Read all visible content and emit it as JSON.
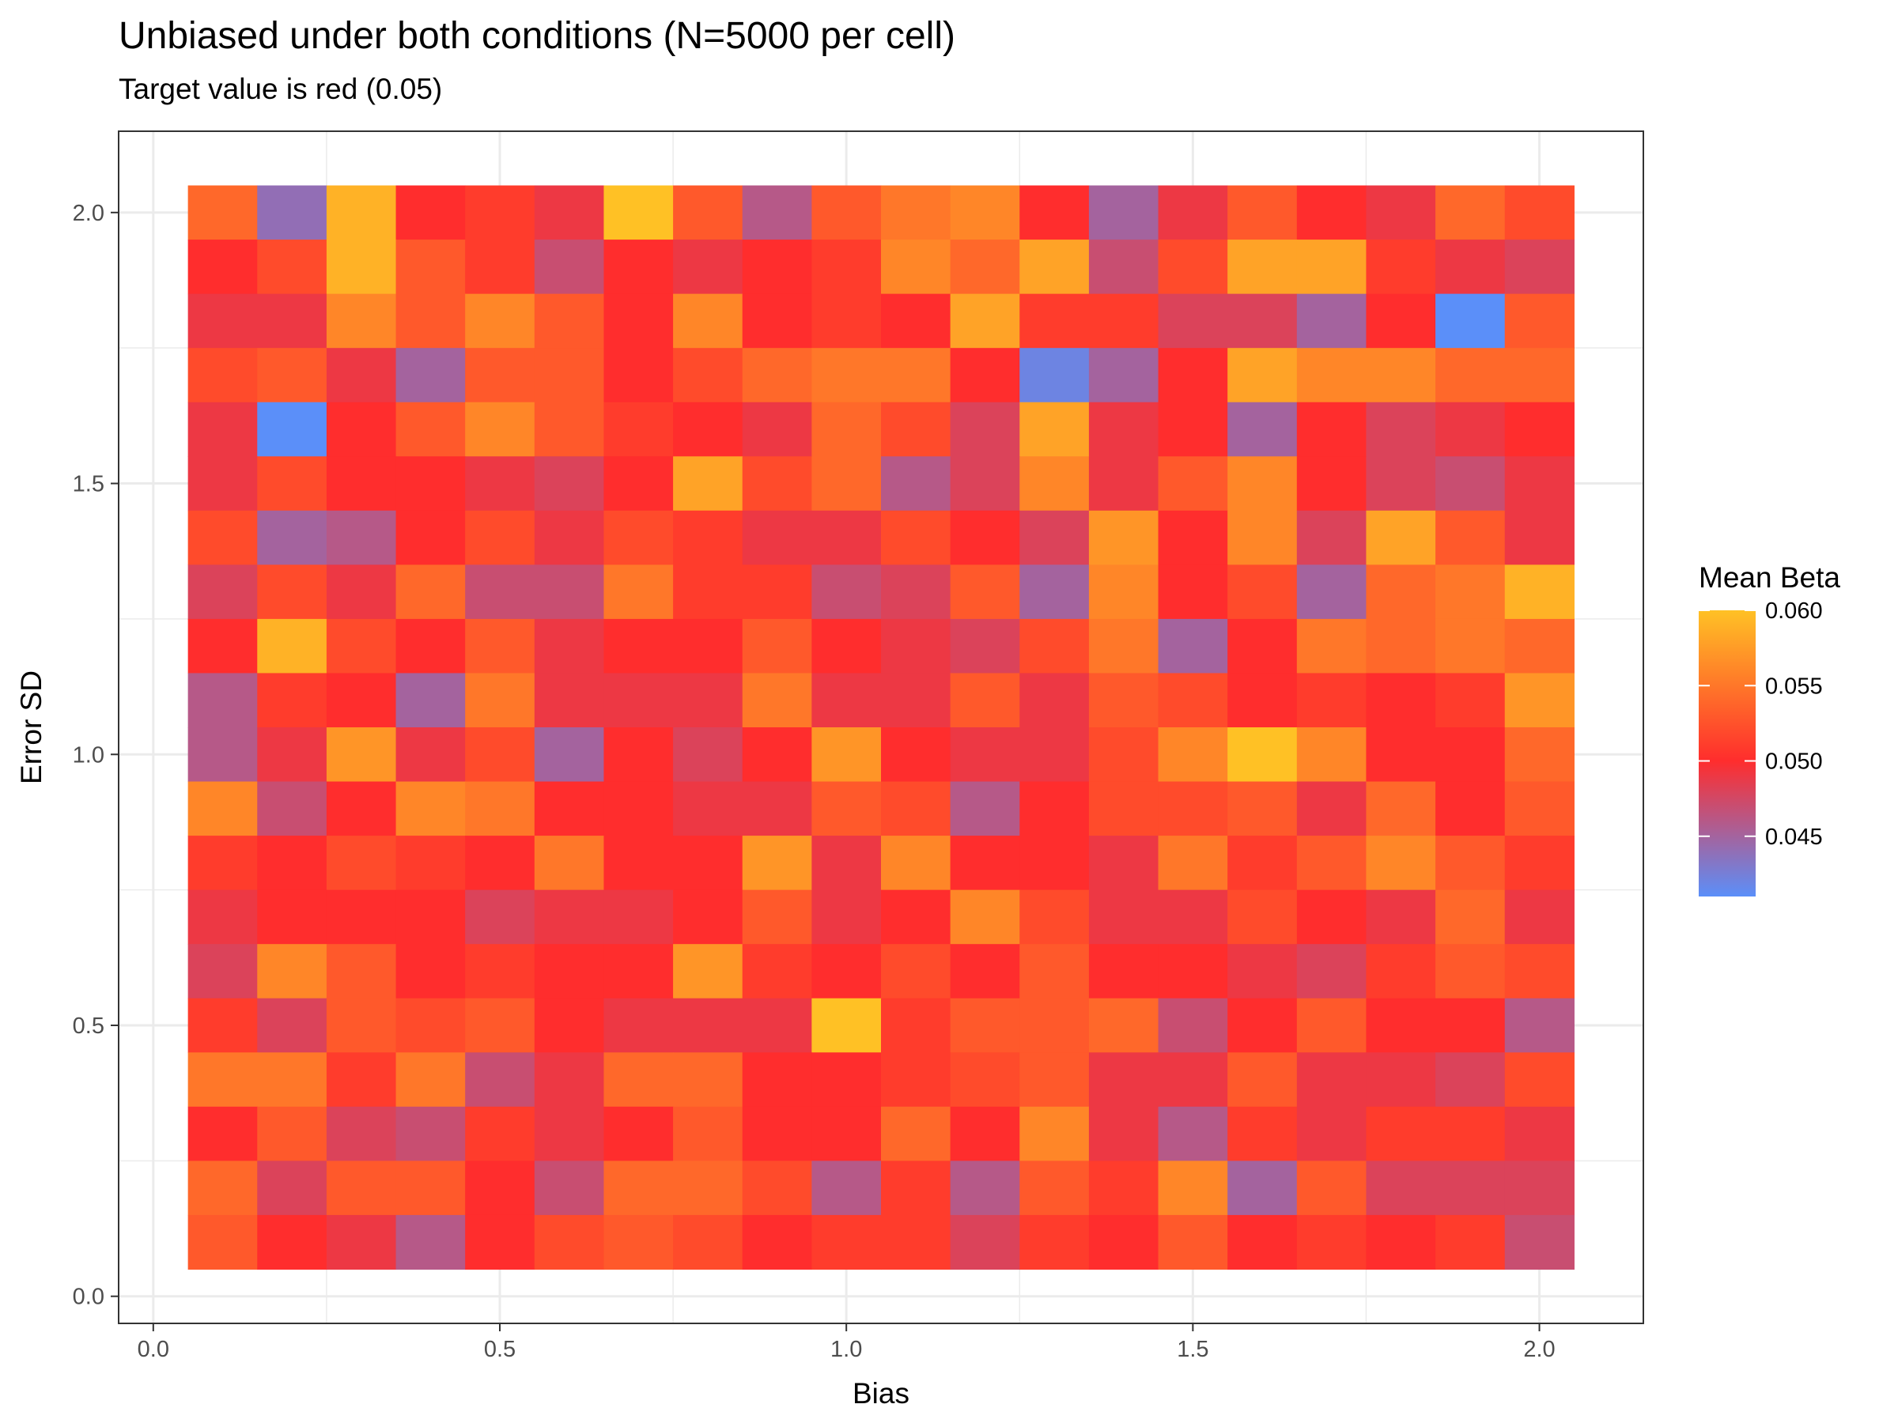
{
  "chart_data": {
    "type": "heatmap",
    "title": "Unbiased under both conditions (N=5000 per cell)",
    "subtitle": "Target value is red (0.05)",
    "xlabel": "Bias",
    "ylabel": "Error SD",
    "x": [
      0.1,
      0.2,
      0.3,
      0.4,
      0.5,
      0.6,
      0.7,
      0.8,
      0.9,
      1.0,
      1.1,
      1.2,
      1.3,
      1.4,
      1.5,
      1.6,
      1.7,
      1.8,
      1.9,
      2.0
    ],
    "y": [
      0.1,
      0.2,
      0.3,
      0.4,
      0.5,
      0.6,
      0.7,
      0.8,
      0.9,
      1.0,
      1.1,
      1.2,
      1.3,
      1.4,
      1.5,
      1.6,
      1.7,
      1.8,
      1.9,
      2.0
    ],
    "xlim": [
      -0.05,
      2.15
    ],
    "ylim": [
      -0.05,
      2.15
    ],
    "x_ticks": [
      0.0,
      0.5,
      1.0,
      1.5,
      2.0
    ],
    "x_tick_labels": [
      "0.0",
      "0.5",
      "1.0",
      "1.5",
      "2.0"
    ],
    "y_ticks": [
      0.0,
      0.5,
      1.0,
      1.5,
      2.0
    ],
    "y_tick_labels": [
      "0.0",
      "0.5",
      "1.0",
      "1.5",
      "2.0"
    ],
    "grid": true,
    "values_by_row_from_top": [
      [
        0.054,
        0.044,
        0.059,
        0.05,
        0.051,
        0.049,
        0.06,
        0.053,
        0.046,
        0.053,
        0.055,
        0.056,
        0.05,
        0.045,
        0.049,
        0.053,
        0.05,
        0.049,
        0.054,
        0.052
      ],
      [
        0.05,
        0.052,
        0.059,
        0.053,
        0.051,
        0.047,
        0.05,
        0.049,
        0.05,
        0.051,
        0.056,
        0.054,
        0.058,
        0.047,
        0.052,
        0.058,
        0.058,
        0.051,
        0.049,
        0.048
      ],
      [
        0.049,
        0.049,
        0.056,
        0.053,
        0.056,
        0.053,
        0.05,
        0.056,
        0.05,
        0.051,
        0.05,
        0.058,
        0.051,
        0.051,
        0.048,
        0.048,
        0.045,
        0.05,
        0.041,
        0.053
      ],
      [
        0.052,
        0.053,
        0.049,
        0.045,
        0.053,
        0.053,
        0.05,
        0.052,
        0.054,
        0.055,
        0.055,
        0.05,
        0.042,
        0.045,
        0.05,
        0.058,
        0.056,
        0.056,
        0.054,
        0.054
      ],
      [
        0.049,
        0.041,
        0.05,
        0.053,
        0.056,
        0.053,
        0.051,
        0.05,
        0.049,
        0.054,
        0.052,
        0.048,
        0.058,
        0.049,
        0.05,
        0.045,
        0.05,
        0.048,
        0.049,
        0.05
      ],
      [
        0.049,
        0.052,
        0.05,
        0.05,
        0.049,
        0.048,
        0.05,
        0.058,
        0.052,
        0.054,
        0.046,
        0.048,
        0.056,
        0.049,
        0.053,
        0.056,
        0.05,
        0.048,
        0.047,
        0.049
      ],
      [
        0.052,
        0.045,
        0.046,
        0.05,
        0.052,
        0.049,
        0.052,
        0.051,
        0.049,
        0.049,
        0.052,
        0.05,
        0.048,
        0.057,
        0.05,
        0.056,
        0.048,
        0.058,
        0.053,
        0.049
      ],
      [
        0.048,
        0.052,
        0.049,
        0.054,
        0.047,
        0.047,
        0.055,
        0.051,
        0.051,
        0.047,
        0.048,
        0.053,
        0.045,
        0.056,
        0.05,
        0.052,
        0.045,
        0.054,
        0.055,
        0.059
      ],
      [
        0.05,
        0.059,
        0.052,
        0.05,
        0.053,
        0.049,
        0.05,
        0.05,
        0.053,
        0.05,
        0.049,
        0.048,
        0.052,
        0.055,
        0.045,
        0.05,
        0.055,
        0.054,
        0.055,
        0.054
      ],
      [
        0.046,
        0.051,
        0.05,
        0.045,
        0.055,
        0.049,
        0.049,
        0.049,
        0.055,
        0.049,
        0.049,
        0.053,
        0.049,
        0.053,
        0.052,
        0.05,
        0.051,
        0.05,
        0.051,
        0.057
      ],
      [
        0.046,
        0.049,
        0.057,
        0.049,
        0.052,
        0.045,
        0.05,
        0.048,
        0.05,
        0.057,
        0.05,
        0.049,
        0.049,
        0.052,
        0.056,
        0.06,
        0.056,
        0.05,
        0.05,
        0.054
      ],
      [
        0.056,
        0.047,
        0.05,
        0.056,
        0.055,
        0.05,
        0.05,
        0.049,
        0.049,
        0.053,
        0.052,
        0.046,
        0.05,
        0.052,
        0.052,
        0.053,
        0.049,
        0.054,
        0.05,
        0.053
      ],
      [
        0.051,
        0.05,
        0.052,
        0.051,
        0.05,
        0.055,
        0.05,
        0.05,
        0.057,
        0.049,
        0.056,
        0.05,
        0.05,
        0.049,
        0.055,
        0.051,
        0.053,
        0.056,
        0.053,
        0.051
      ],
      [
        0.049,
        0.05,
        0.05,
        0.05,
        0.048,
        0.049,
        0.049,
        0.05,
        0.053,
        0.049,
        0.05,
        0.056,
        0.052,
        0.049,
        0.049,
        0.052,
        0.05,
        0.049,
        0.054,
        0.049
      ],
      [
        0.048,
        0.056,
        0.053,
        0.05,
        0.051,
        0.05,
        0.05,
        0.057,
        0.051,
        0.05,
        0.052,
        0.05,
        0.053,
        0.05,
        0.05,
        0.049,
        0.048,
        0.051,
        0.053,
        0.052
      ],
      [
        0.051,
        0.048,
        0.053,
        0.052,
        0.053,
        0.05,
        0.049,
        0.049,
        0.049,
        0.06,
        0.051,
        0.053,
        0.053,
        0.054,
        0.047,
        0.05,
        0.053,
        0.05,
        0.05,
        0.046
      ],
      [
        0.055,
        0.055,
        0.051,
        0.055,
        0.047,
        0.049,
        0.054,
        0.054,
        0.05,
        0.05,
        0.051,
        0.052,
        0.053,
        0.049,
        0.049,
        0.053,
        0.049,
        0.049,
        0.048,
        0.052
      ],
      [
        0.05,
        0.053,
        0.048,
        0.047,
        0.051,
        0.049,
        0.05,
        0.053,
        0.05,
        0.05,
        0.054,
        0.05,
        0.056,
        0.049,
        0.046,
        0.051,
        0.049,
        0.051,
        0.051,
        0.049
      ],
      [
        0.054,
        0.048,
        0.053,
        0.053,
        0.05,
        0.047,
        0.054,
        0.054,
        0.052,
        0.046,
        0.051,
        0.046,
        0.053,
        0.051,
        0.056,
        0.045,
        0.053,
        0.048,
        0.048,
        0.048
      ],
      [
        0.053,
        0.05,
        0.049,
        0.046,
        0.05,
        0.052,
        0.053,
        0.052,
        0.05,
        0.051,
        0.051,
        0.048,
        0.051,
        0.05,
        0.053,
        0.05,
        0.051,
        0.05,
        0.051,
        0.047
      ]
    ],
    "color_scale": {
      "domain": [
        0.041,
        0.05,
        0.06
      ],
      "colors": [
        "#5b8ff9",
        "#ff2d2d",
        "#ffc125"
      ]
    },
    "legend": {
      "title": "Mean Beta",
      "placement": "right",
      "ticks": [
        0.045,
        0.05,
        0.055,
        0.06
      ],
      "tick_labels": [
        "0.045",
        "0.050",
        "0.055",
        "0.060"
      ]
    }
  }
}
